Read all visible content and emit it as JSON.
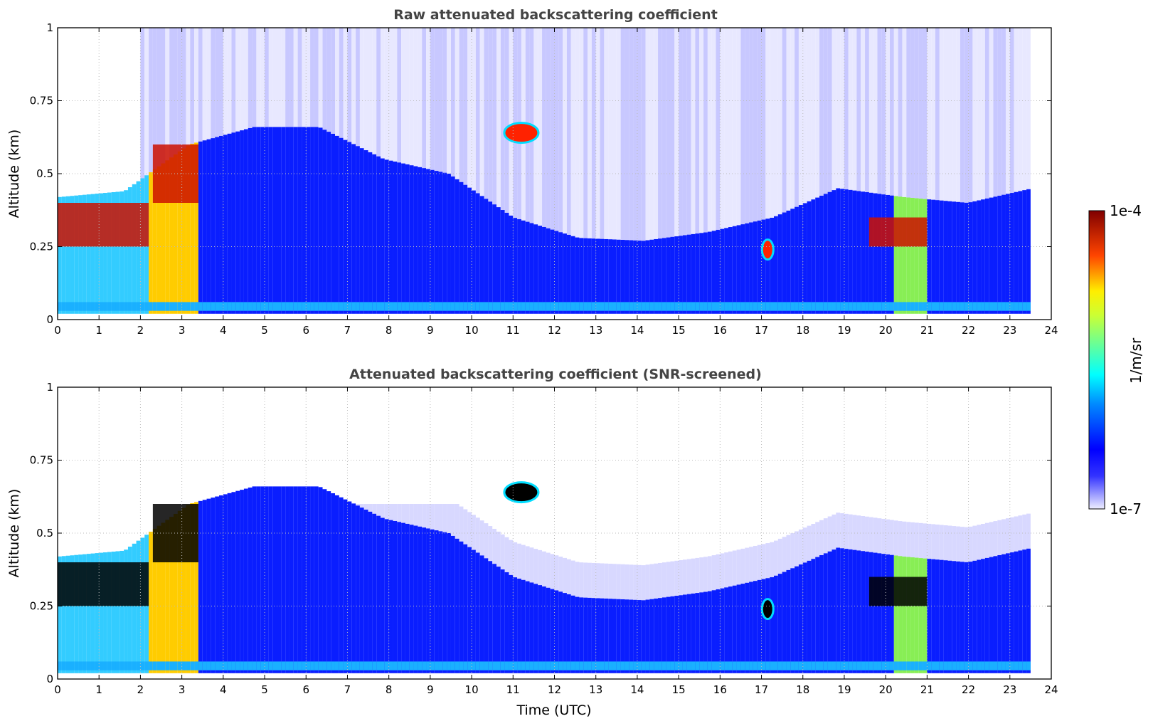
{
  "chart_data": [
    {
      "type": "heatmap",
      "title": "Raw attenuated backscattering coefficient",
      "xlabel": "",
      "ylabel": "Altitude (km)",
      "xlim": [
        0,
        24
      ],
      "ylim": [
        0,
        1
      ],
      "xticks": [
        0,
        1,
        2,
        3,
        4,
        5,
        6,
        7,
        8,
        9,
        10,
        11,
        12,
        13,
        14,
        15,
        16,
        17,
        18,
        19,
        20,
        21,
        22,
        23,
        24
      ],
      "yticks": [
        {
          "value": 0,
          "label": "0"
        },
        {
          "value": 0.25,
          "label": "0.25"
        },
        {
          "value": 0.5,
          "label": "0.5"
        },
        {
          "value": 0.75,
          "label": "0.75"
        },
        {
          "value": 1,
          "label": "1"
        }
      ],
      "grid": true,
      "features": [
        {
          "name": "boundary-layer",
          "x": [
            0,
            23.5
          ],
          "top_km": [
            0.42,
            0.44,
            0.6,
            0.66,
            0.66,
            0.55,
            0.5,
            0.35,
            0.28,
            0.27,
            0.3,
            0.35,
            0.45,
            0.42,
            0.4,
            0.45
          ]
        },
        {
          "name": "elevated-cloud",
          "x_center": 11.2,
          "y_center_km": 0.64
        },
        {
          "name": "low-cloud",
          "x_range": [
            0,
            2.2
          ],
          "y_range_km": [
            0.25,
            0.4
          ]
        },
        {
          "name": "low-cloud",
          "x_range": [
            2.3,
            3.4
          ],
          "y_range_km": [
            0.4,
            0.6
          ]
        },
        {
          "name": "cloud",
          "x_center": 17.15,
          "y_center_km": 0.24
        },
        {
          "name": "low-cloud",
          "x_range": [
            19.6,
            21.0
          ],
          "y_range_km": [
            0.25,
            0.35
          ]
        }
      ]
    },
    {
      "type": "heatmap",
      "title": "Attenuated backscattering coefficient (SNR-screened)",
      "xlabel": "Time (UTC)",
      "ylabel": "Altitude (km)",
      "xlim": [
        0,
        24
      ],
      "ylim": [
        0,
        1
      ],
      "xticks": [
        0,
        1,
        2,
        3,
        4,
        5,
        6,
        7,
        8,
        9,
        10,
        11,
        12,
        13,
        14,
        15,
        16,
        17,
        18,
        19,
        20,
        21,
        22,
        23,
        24
      ],
      "yticks": [
        {
          "value": 0,
          "label": "0"
        },
        {
          "value": 0.25,
          "label": "0.25"
        },
        {
          "value": 0.5,
          "label": "0.5"
        },
        {
          "value": 0.75,
          "label": "0.75"
        },
        {
          "value": 1,
          "label": "1"
        }
      ],
      "grid": true
    }
  ],
  "colorbar": {
    "label": "1/m/sr",
    "min_label": "1e-7",
    "max_label": "1e-4",
    "min_value": 1e-07,
    "max_value": 0.0001,
    "scale": "log",
    "colormap": "jet"
  }
}
